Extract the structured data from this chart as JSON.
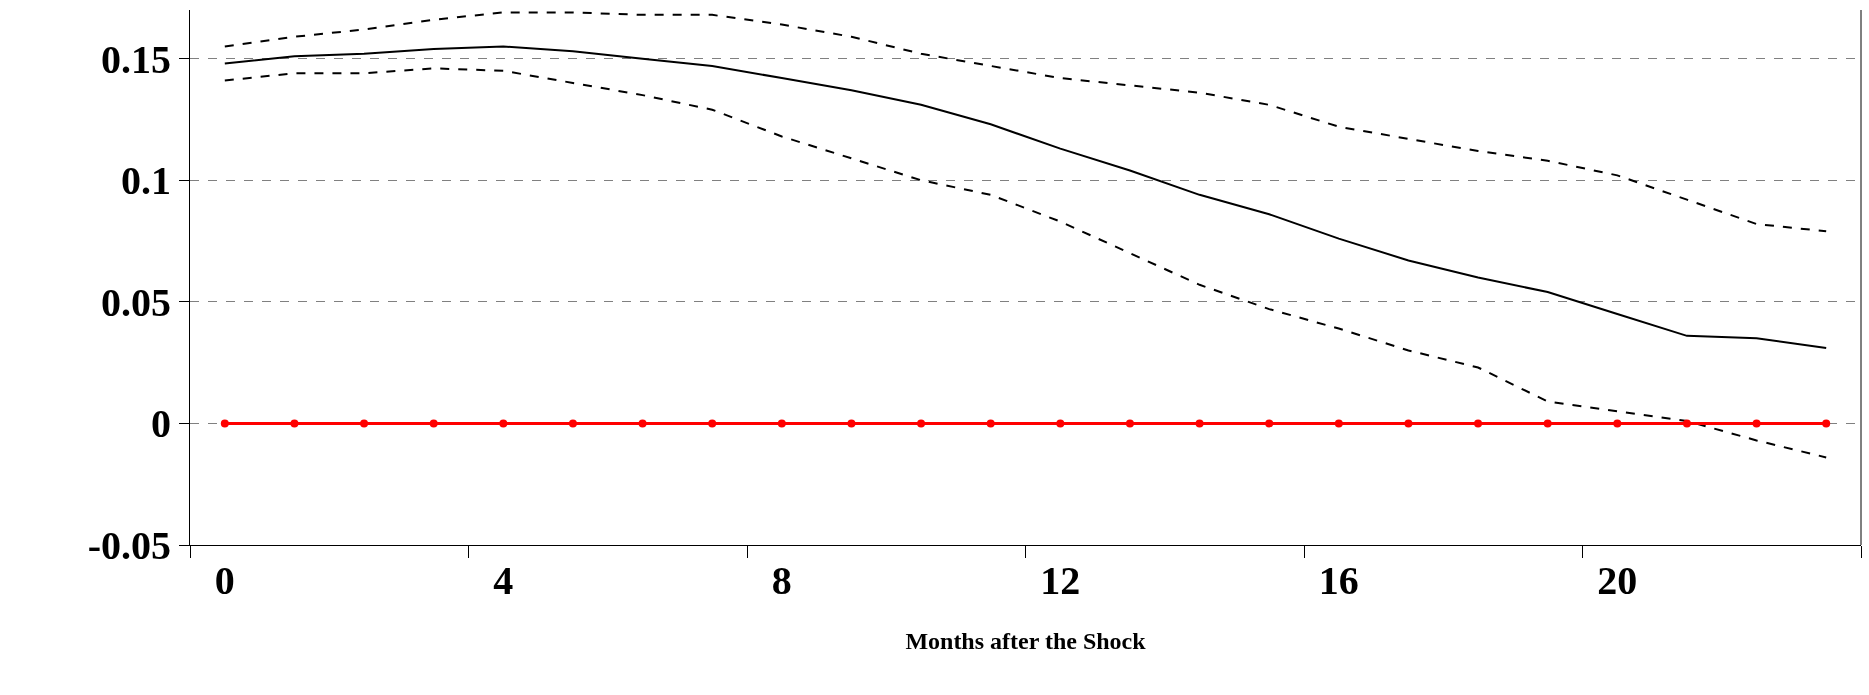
{
  "chart_data": {
    "type": "line",
    "xlabel": "Months after the Shock",
    "categories": [
      "0",
      null,
      null,
      null,
      "4",
      null,
      null,
      null,
      "8",
      null,
      null,
      null,
      "12",
      null,
      null,
      null,
      "16",
      null,
      null,
      null,
      "20",
      null,
      null,
      null
    ],
    "series": [
      {
        "color": "#000000",
        "line_style": "solid",
        "values": [
          0.148,
          0.151,
          0.152,
          0.154,
          0.155,
          0.153,
          0.15,
          0.147,
          0.142,
          0.137,
          0.131,
          0.123,
          0.113,
          0.104,
          0.094,
          0.086,
          0.076,
          0.067,
          0.06,
          0.054,
          0.045,
          0.036,
          0.035,
          0.031
        ]
      },
      {
        "color": "#000000",
        "line_style": "dashed",
        "values": [
          0.155,
          0.159,
          0.162,
          0.166,
          0.169,
          0.169,
          0.168,
          0.168,
          0.164,
          0.159,
          0.152,
          0.147,
          0.142,
          0.139,
          0.136,
          0.131,
          0.122,
          0.117,
          0.112,
          0.108,
          0.102,
          0.092,
          0.082,
          0.079
        ]
      },
      {
        "color": "#000000",
        "line_style": "dashed",
        "values": [
          0.141,
          0.144,
          0.144,
          0.146,
          0.145,
          0.14,
          0.135,
          0.129,
          0.118,
          0.109,
          0.1,
          0.094,
          0.083,
          0.07,
          0.057,
          0.047,
          0.039,
          0.03,
          0.023,
          0.009,
          0.005,
          0.001,
          -0.007,
          -0.014
        ]
      },
      {
        "color": "#ff0000",
        "line_style": "solid",
        "marker": "circle",
        "values": [
          0,
          0,
          0,
          0,
          0,
          0,
          0,
          0,
          0,
          0,
          0,
          0,
          0,
          0,
          0,
          0,
          0,
          0,
          0,
          0,
          0,
          0,
          0,
          0
        ]
      }
    ],
    "ylim": [
      -0.05,
      0.17
    ],
    "yticks": [
      -0.05,
      0,
      0.05,
      0.1,
      0.15
    ],
    "grid": "y"
  }
}
